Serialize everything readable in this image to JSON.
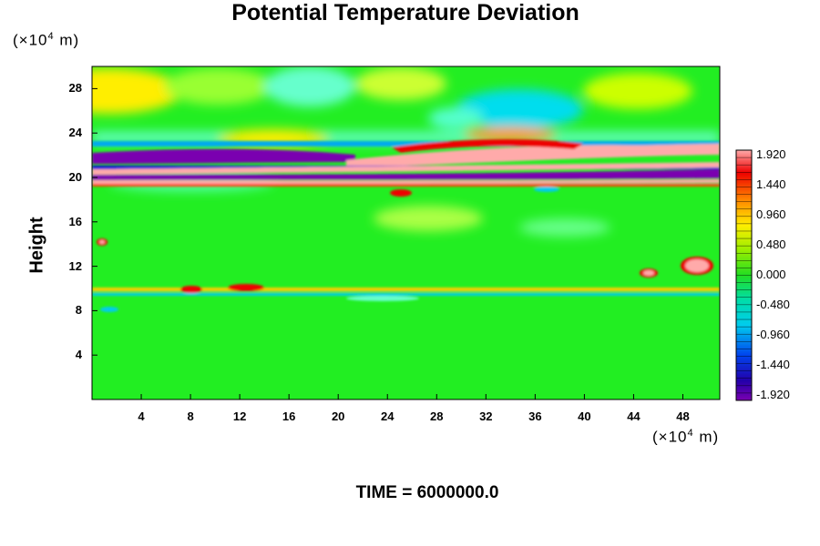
{
  "chart_data": {
    "type": "heatmap",
    "title": "Potential Temperature Deviation",
    "ylabel": "Height",
    "x_unit_prefix": "(×10",
    "x_unit_exp": "4",
    "x_unit_suffix": " m)",
    "y_unit_prefix": "(×10",
    "y_unit_exp": "4",
    "y_unit_suffix": " m)",
    "xlim": [
      0,
      51
    ],
    "ylim": [
      0,
      30
    ],
    "xticks": [
      "4",
      "8",
      "12",
      "16",
      "20",
      "24",
      "28",
      "32",
      "36",
      "40",
      "44",
      "48"
    ],
    "yticks": [
      "4",
      "8",
      "12",
      "16",
      "20",
      "24",
      "28"
    ],
    "colorbar": {
      "labels": [
        "1.920",
        "1.440",
        "0.960",
        "0.480",
        "0.000",
        "-0.480",
        "-0.960",
        "-1.440",
        "-1.920"
      ],
      "range": [
        -1.92,
        1.92
      ]
    },
    "footer": "TIME = 6000000.0"
  },
  "colors": {
    "background_field": "#22ee22",
    "positive_high": "#ffaaaa",
    "negative_low": "#7a00b0"
  }
}
